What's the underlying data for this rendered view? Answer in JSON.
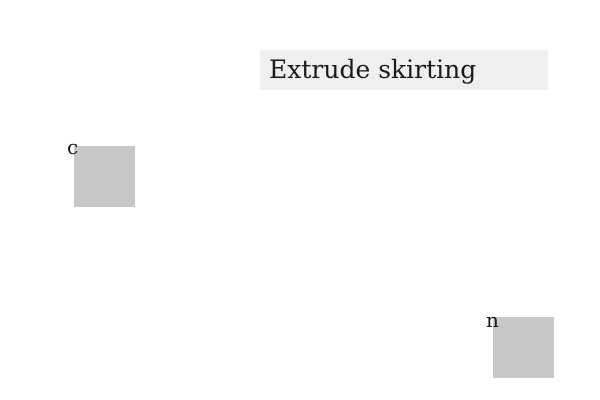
{
  "instruction": {
    "text": "Extrude skirting"
  },
  "tiles": [
    {
      "label": "c",
      "color": "#c8c8c8"
    },
    {
      "label": "n",
      "color": "#c8c8c8"
    }
  ],
  "colors": {
    "background": "#ffffff",
    "title_bar": "#efefef",
    "tile": "#c8c8c8",
    "text": "#1a1a1a"
  }
}
